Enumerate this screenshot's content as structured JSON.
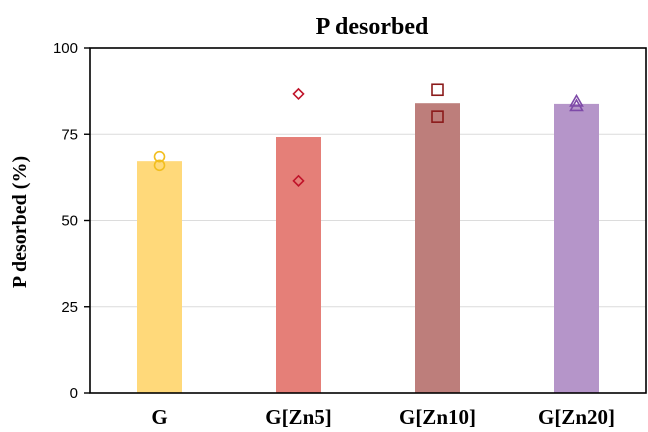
{
  "chart_data": {
    "type": "bar",
    "title": "P desorbed",
    "ylabel": "P desorbed (%)",
    "xlabel": "",
    "ylim": [
      0,
      100
    ],
    "yticks": [
      0,
      25,
      50,
      75,
      100
    ],
    "grid": true,
    "categories": [
      "G",
      "G[Zn5]",
      "G[Zn10]",
      "G[Zn20]"
    ],
    "values": [
      67.2,
      74.2,
      84.0,
      83.8
    ],
    "bar_colors": [
      "#FFD97A",
      "#E57F78",
      "#BD7E7B",
      "#B595C9"
    ],
    "replicates": [
      {
        "category": "G",
        "marker": "circle",
        "color": "#F2BE1E",
        "values": [
          68.5,
          66.0
        ]
      },
      {
        "category": "G[Zn5]",
        "marker": "diamond",
        "color": "#C0142A",
        "values": [
          86.7,
          61.5
        ]
      },
      {
        "category": "G[Zn10]",
        "marker": "square",
        "color": "#8B1A1A",
        "values": [
          87.9,
          80.1
        ]
      },
      {
        "category": "G[Zn20]",
        "marker": "triangle",
        "color": "#7E4AA8",
        "values": [
          84.5,
          83.2
        ]
      }
    ]
  }
}
